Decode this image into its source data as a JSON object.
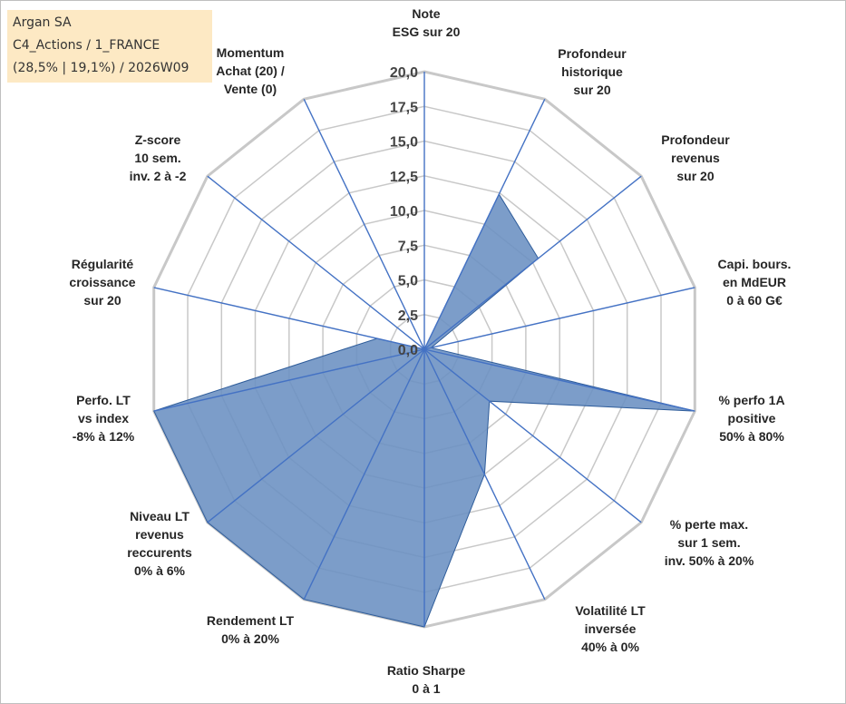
{
  "info_box": {
    "line1": "Argan SA",
    "line2": "C4_Actions / 1_FRANCE",
    "line3": "(28,5% | 19,1%) / 2026W09"
  },
  "chart_data": {
    "type": "radar",
    "title": "",
    "rmax": 20,
    "ticks": [
      "0,0",
      "2,5",
      "5,0",
      "7,5",
      "10,0",
      "12,5",
      "15,0",
      "17,5",
      "20,0"
    ],
    "tick_values": [
      0,
      2.5,
      5,
      7.5,
      10,
      12.5,
      15,
      17.5,
      20
    ],
    "categories": [
      {
        "id": "note-esg",
        "lines": [
          "Note",
          "ESG sur 20"
        ]
      },
      {
        "id": "profondeur-historique",
        "lines": [
          "Profondeur",
          "historique",
          "sur 20"
        ]
      },
      {
        "id": "profondeur-revenus",
        "lines": [
          "Profondeur",
          "revenus",
          "sur 20"
        ]
      },
      {
        "id": "capi-bours",
        "lines": [
          "Capi. bours.",
          "en MdEUR",
          "0 à 60 G€"
        ]
      },
      {
        "id": "perfo-1a-positive",
        "lines": [
          "% perfo 1A",
          "positive",
          "50% à 80%"
        ]
      },
      {
        "id": "perte-max",
        "lines": [
          "% perte max.",
          "sur 1 sem.",
          "inv. 50% à 20%"
        ]
      },
      {
        "id": "volatilite-lt",
        "lines": [
          "Volatilité LT",
          "inversée",
          "40% à 0%"
        ]
      },
      {
        "id": "ratio-sharpe",
        "lines": [
          "Ratio Sharpe",
          "0 à 1"
        ]
      },
      {
        "id": "rendement-lt",
        "lines": [
          "Rendement LT",
          "0% à 20%"
        ]
      },
      {
        "id": "niveau-lt-revenus",
        "lines": [
          "Niveau LT",
          "revenus",
          "reccurents",
          "0% à 6%"
        ]
      },
      {
        "id": "perfo-lt-vs-index",
        "lines": [
          "Perfo. LT",
          "vs index",
          "-8% à 12%"
        ]
      },
      {
        "id": "regularite-croissance",
        "lines": [
          "Régularité",
          "croissance",
          "sur 20"
        ]
      },
      {
        "id": "z-score",
        "lines": [
          "Z-score",
          "10 sem.",
          "inv. 2 à -2"
        ]
      },
      {
        "id": "momentum",
        "lines": [
          "Momentum",
          "Achat (20) /",
          "Vente (0)"
        ]
      }
    ],
    "series": [
      {
        "name": "Argan SA",
        "values": [
          0,
          12.4,
          10.5,
          0.5,
          20,
          6.0,
          10.0,
          20.0,
          20.0,
          20.0,
          20.0,
          3.5,
          0,
          0
        ],
        "fill": "#6a90c2",
        "stroke": "#2e5c9a"
      }
    ],
    "grid_color": "#c8c8c8",
    "spoke_color": "#4472c4",
    "legend": "none"
  }
}
